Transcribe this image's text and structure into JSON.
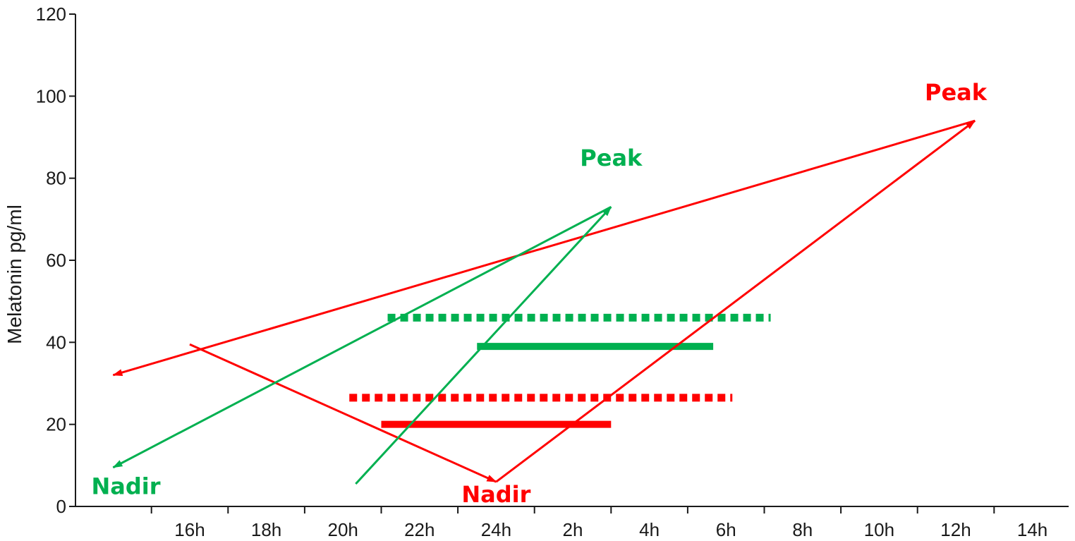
{
  "chart_data": {
    "type": "line",
    "title": "",
    "xlabel": "",
    "ylabel": "Melatonin pg/ml",
    "x_ticks": [
      "16h",
      "18h",
      "20h",
      "22h",
      "24h",
      "2h",
      "4h",
      "6h",
      "8h",
      "10h",
      "12h",
      "14h"
    ],
    "y_ticks": [
      "0",
      "20",
      "40",
      "60",
      "80",
      "100",
      "120"
    ],
    "ylim": [
      0,
      120
    ],
    "grid": false,
    "legend": "none",
    "series": [
      {
        "color": "#ff0000",
        "points": [
          {
            "x": "16h",
            "y": 39.5
          },
          {
            "x": "24h",
            "y": 6
          },
          {
            "x": "12:30h",
            "y": 94
          },
          {
            "x": "14h",
            "y": 32
          }
        ]
      },
      {
        "color": "#00b050",
        "points": [
          {
            "x": "20:20h",
            "y": 5.5
          },
          {
            "x": "3h",
            "y": 73
          },
          {
            "x": "14h",
            "y": 9.5
          }
        ]
      }
    ],
    "bands": [
      {
        "color": "#00b050",
        "style": "dotted",
        "y": 46,
        "x_start": "21:10h",
        "x_end": "7:10h"
      },
      {
        "color": "#00b050",
        "style": "solid",
        "y": 39,
        "x_start": "23:30h",
        "x_end": "5:40h"
      },
      {
        "color": "#ff0000",
        "style": "dotted",
        "y": 26.5,
        "x_start": "20:10h",
        "x_end": "6:10h"
      },
      {
        "color": "#ff0000",
        "style": "solid",
        "y": 20,
        "x_start": "21h",
        "x_end": "3h"
      }
    ],
    "annotations": [
      {
        "text": "Peak",
        "color": "#00b050",
        "x": "3h",
        "y": 83
      },
      {
        "text": "Peak",
        "color": "#ff0000",
        "x": "12h",
        "y": 99
      },
      {
        "text": "Nadir",
        "color": "#ff0000",
        "x": "24h",
        "y": 1
      },
      {
        "text": "Nadir",
        "color": "#00b050",
        "x": "14:20h",
        "y": 3
      }
    ]
  }
}
